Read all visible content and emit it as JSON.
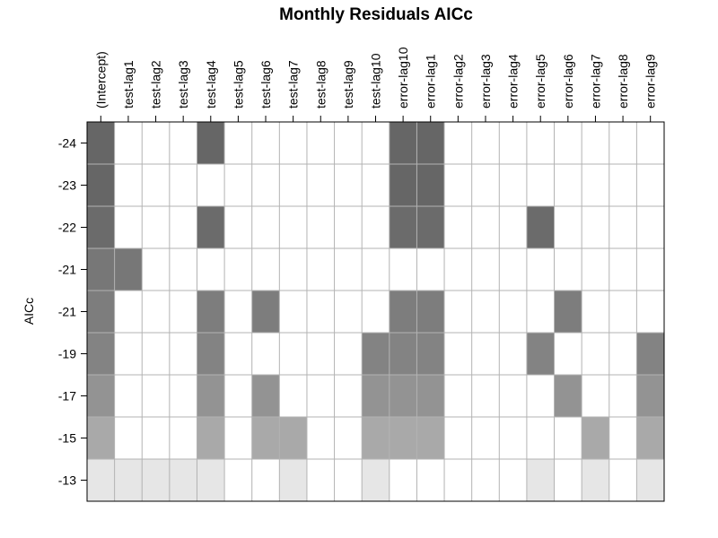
{
  "chart_data": {
    "type": "heatmap",
    "title": "Monthly Residuals AICc",
    "ylabel": "AICc",
    "columns": [
      "(Intercept)",
      "test-lag1",
      "test-lag2",
      "test-lag3",
      "test-lag4",
      "test-lag5",
      "test-lag6",
      "test-lag7",
      "test-lag8",
      "test-lag9",
      "test-lag10",
      "error-lag10",
      "error-lag1",
      "error-lag2",
      "error-lag3",
      "error-lag4",
      "error-lag5",
      "error-lag6",
      "error-lag7",
      "error-lag8",
      "error-lag9"
    ],
    "rows": [
      {
        "label": "-24",
        "color": "#666666",
        "included": [
          1,
          0,
          0,
          0,
          1,
          0,
          0,
          0,
          0,
          0,
          0,
          1,
          1,
          0,
          0,
          0,
          0,
          0,
          0,
          0,
          0
        ]
      },
      {
        "label": "-23",
        "color": "#666666",
        "included": [
          1,
          0,
          0,
          0,
          0,
          0,
          0,
          0,
          0,
          0,
          0,
          1,
          1,
          0,
          0,
          0,
          0,
          0,
          0,
          0,
          0
        ]
      },
      {
        "label": "-22",
        "color": "#6b6b6b",
        "included": [
          1,
          0,
          0,
          0,
          1,
          0,
          0,
          0,
          0,
          0,
          0,
          1,
          1,
          0,
          0,
          0,
          1,
          0,
          0,
          0,
          0
        ]
      },
      {
        "label": "-21",
        "color": "#777777",
        "included": [
          1,
          1,
          0,
          0,
          0,
          0,
          0,
          0,
          0,
          0,
          0,
          0,
          0,
          0,
          0,
          0,
          0,
          0,
          0,
          0,
          0
        ]
      },
      {
        "label": "-21",
        "color": "#7d7d7d",
        "included": [
          1,
          0,
          0,
          0,
          1,
          0,
          1,
          0,
          0,
          0,
          0,
          1,
          1,
          0,
          0,
          0,
          0,
          1,
          0,
          0,
          0
        ]
      },
      {
        "label": "-19",
        "color": "#838383",
        "included": [
          1,
          0,
          0,
          0,
          1,
          0,
          0,
          0,
          0,
          0,
          1,
          1,
          1,
          0,
          0,
          0,
          1,
          0,
          0,
          0,
          1
        ]
      },
      {
        "label": "-17",
        "color": "#939393",
        "included": [
          1,
          0,
          0,
          0,
          1,
          0,
          1,
          0,
          0,
          0,
          1,
          1,
          1,
          0,
          0,
          0,
          0,
          1,
          0,
          0,
          1
        ]
      },
      {
        "label": "-15",
        "color": "#a9a9a9",
        "included": [
          1,
          0,
          0,
          0,
          1,
          0,
          1,
          1,
          0,
          0,
          1,
          1,
          1,
          0,
          0,
          0,
          0,
          0,
          1,
          0,
          1
        ]
      },
      {
        "label": "-13",
        "color": "#e6e6e6",
        "included": [
          1,
          1,
          1,
          1,
          1,
          0,
          0,
          1,
          0,
          0,
          1,
          0,
          0,
          0,
          0,
          0,
          1,
          0,
          1,
          0,
          1
        ]
      }
    ]
  }
}
